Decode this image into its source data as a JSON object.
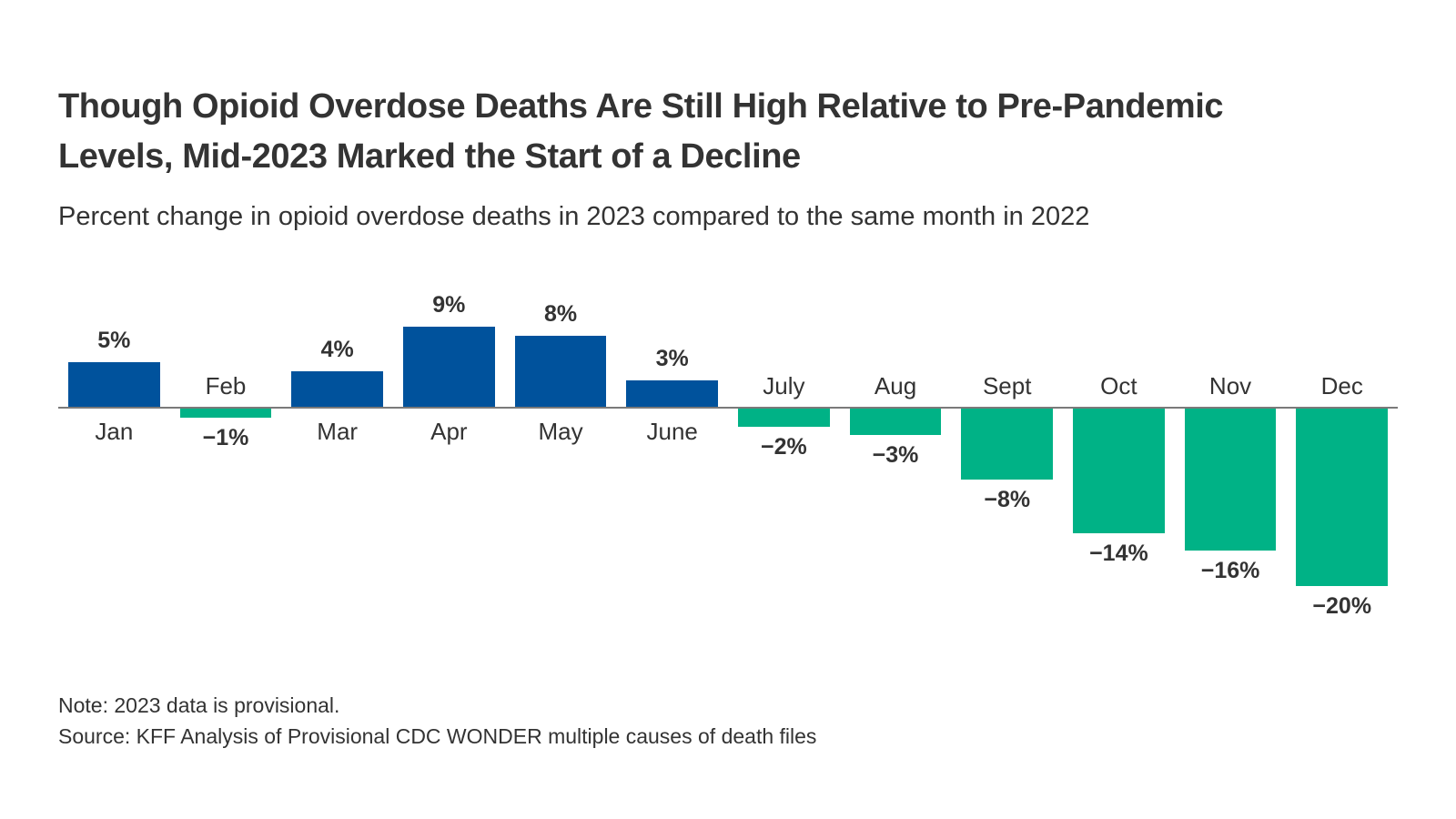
{
  "header": {
    "title_line1": "Though Opioid Overdose Deaths Are Still High Relative to Pre-Pandemic",
    "title_line2": "Levels, Mid-2023 Marked the Start of a Decline",
    "subtitle": "Percent change in opioid overdose deaths in 2023 compared to the same month in 2022"
  },
  "footer": {
    "note": "Note: 2023 data is provisional.",
    "source": "Source: KFF Analysis of Provisional CDC WONDER multiple causes of death files"
  },
  "colors": {
    "positive_bar": "#00529C",
    "negative_bar": "#00B286",
    "axis": "#7a7a7a",
    "text": "#333333"
  },
  "chart_data": {
    "type": "bar",
    "title": "Though Opioid Overdose Deaths Are Still High Relative to Pre-Pandemic Levels, Mid-2023 Marked the Start of a Decline",
    "subtitle": "Percent change in opioid overdose deaths in 2023 compared to the same month in 2022",
    "categories": [
      "Jan",
      "Feb",
      "Mar",
      "Apr",
      "May",
      "June",
      "July",
      "Aug",
      "Sept",
      "Oct",
      "Nov",
      "Dec"
    ],
    "values": [
      5,
      -1,
      4,
      9,
      8,
      3,
      -2,
      -3,
      -8,
      -14,
      -16,
      -20
    ],
    "value_labels": [
      "5%",
      "−1%",
      "4%",
      "9%",
      "8%",
      "3%",
      "−2%",
      "−3%",
      "−8%",
      "−14%",
      "−16%",
      "−20%"
    ],
    "xlabel": "",
    "ylabel": "Percent change in opioid overdose deaths",
    "ylim": [
      -20,
      9
    ],
    "grid": false,
    "legend": "none",
    "data_label_position": "outside-end",
    "baseline": 0
  }
}
